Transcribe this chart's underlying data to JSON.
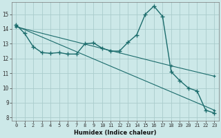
{
  "xlabel": "Humidex (Indice chaleur)",
  "bg_color": "#cce8e8",
  "grid_color": "#aacccc",
  "line_color": "#1a6b6b",
  "xlim": [
    -0.5,
    23.5
  ],
  "ylim": [
    7.8,
    15.8
  ],
  "yticks": [
    8,
    9,
    10,
    11,
    12,
    13,
    14,
    15
  ],
  "xticks": [
    0,
    1,
    2,
    3,
    4,
    5,
    6,
    7,
    8,
    9,
    10,
    11,
    12,
    13,
    14,
    15,
    16,
    17,
    18,
    19,
    20,
    21,
    22,
    23
  ],
  "line1_x": [
    0,
    1,
    2,
    3,
    4,
    5,
    6,
    7,
    8,
    9,
    10,
    11,
    12,
    13,
    14,
    15,
    16,
    17,
    18,
    19,
    20,
    21,
    22,
    23
  ],
  "line1_y": [
    14.3,
    13.7,
    12.8,
    12.4,
    12.35,
    12.4,
    12.3,
    12.3,
    13.0,
    13.05,
    12.7,
    12.5,
    12.5,
    13.1,
    13.6,
    15.0,
    15.55,
    14.85,
    11.1,
    10.5,
    10.0,
    9.8,
    8.5,
    8.3
  ],
  "line2_x": [
    0,
    23
  ],
  "line2_y": [
    14.2,
    8.5
  ],
  "line3_x": [
    0,
    18,
    23
  ],
  "line3_y": [
    14.15,
    11.5,
    10.8
  ]
}
